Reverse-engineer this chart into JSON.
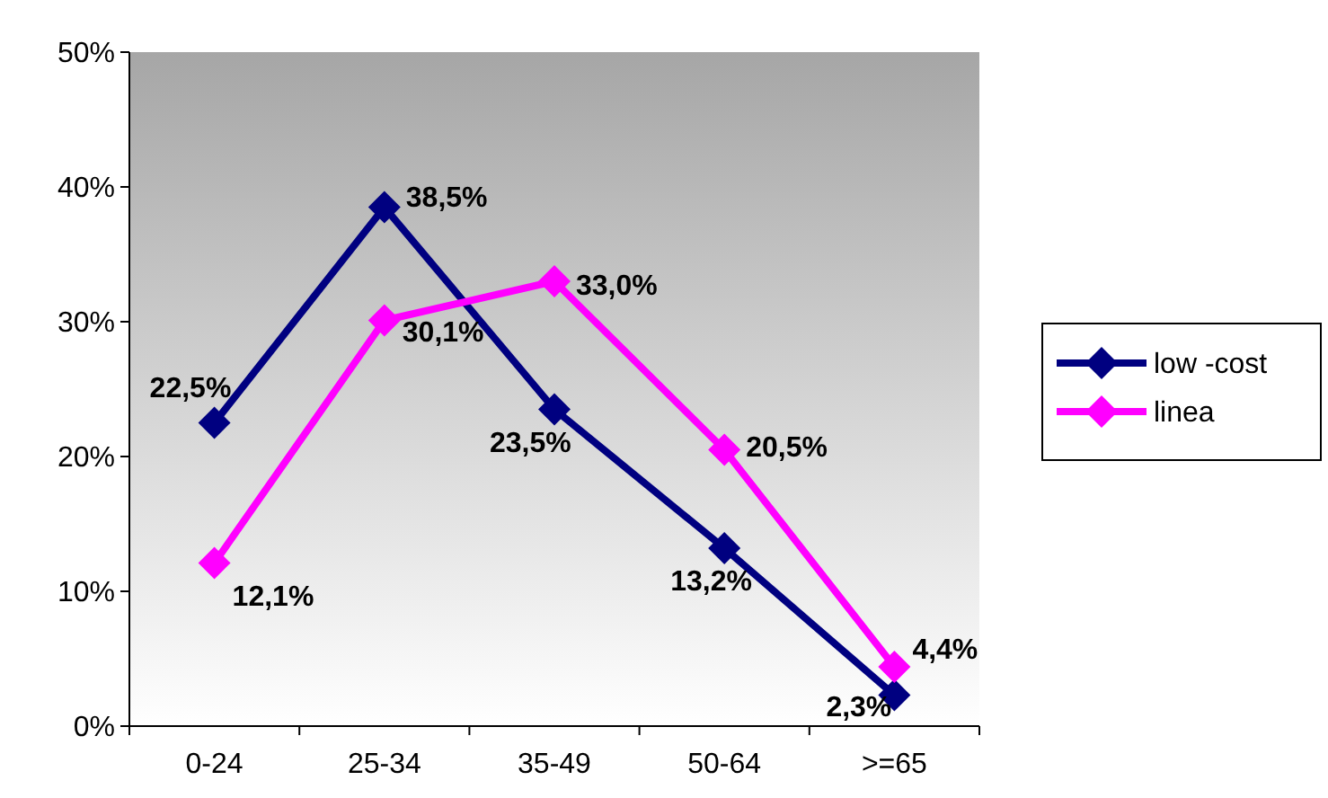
{
  "chart_data": {
    "type": "line",
    "categories": [
      "0-24",
      "25-34",
      "35-49",
      "50-64",
      ">=65"
    ],
    "series": [
      {
        "name": "low -cost",
        "color": "#000080",
        "values": [
          22.5,
          38.5,
          23.5,
          13.2,
          2.3
        ],
        "value_labels": [
          "22,5%",
          "38,5%",
          "23,5%",
          "13,2%",
          "2,3%"
        ]
      },
      {
        "name": "linea",
        "color": "#ff00ff",
        "values": [
          12.1,
          30.1,
          33.0,
          20.5,
          4.4
        ],
        "value_labels": [
          "12,1%",
          "30,1%",
          "33,0%",
          "20,5%",
          "4,4%"
        ]
      }
    ],
    "ylim": [
      0,
      50
    ],
    "yticks": [
      {
        "value": 0,
        "label": "0%"
      },
      {
        "value": 10,
        "label": "10%"
      },
      {
        "value": 20,
        "label": "20%"
      },
      {
        "value": 30,
        "label": "30%"
      },
      {
        "value": 40,
        "label": "40%"
      },
      {
        "value": 50,
        "label": "50%"
      }
    ],
    "legend": "right",
    "marker": "diamond",
    "line_style": "solid",
    "grid": false
  }
}
